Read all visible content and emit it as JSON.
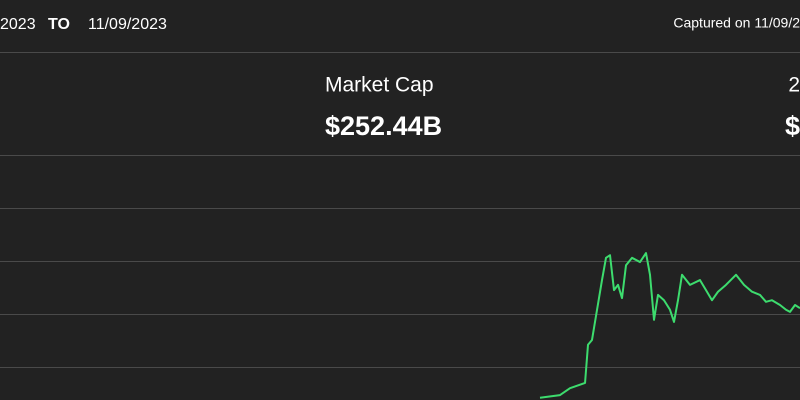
{
  "header": {
    "from_date": "2023",
    "to_label": "TO",
    "to_date": "11/09/2023",
    "captured": "Captured on 11/09/2"
  },
  "stats": [
    {
      "label": "Market Cap",
      "value": "$252.44B"
    },
    {
      "label": "2",
      "value": "$"
    }
  ],
  "chart_data": {
    "type": "line",
    "color": "#3ddc6e",
    "xlim": [
      0,
      100
    ],
    "ylim": [
      0,
      5
    ],
    "series": [
      {
        "x": [
          67.5,
          70,
          71.25,
          73.13,
          73.5,
          74,
          74.63,
          75.25,
          75.75,
          76.25,
          76.75,
          77.25,
          77.75,
          78.25,
          79,
          80,
          80.75,
          81.25,
          81.75,
          82.25,
          83,
          83.75,
          84.25,
          84.75,
          85.25,
          86.25,
          87.5,
          88.25,
          89,
          89.75,
          90.75,
          92,
          93,
          94,
          95,
          95.75,
          96.5,
          97.5,
          98.25,
          98.75,
          99.38,
          100
        ],
        "values": [
          0.42,
          0.47,
          0.6,
          0.7,
          1.42,
          1.51,
          2.08,
          2.64,
          3.06,
          3.11,
          2.45,
          2.55,
          2.3,
          2.92,
          3.06,
          2.98,
          3.15,
          2.74,
          1.89,
          2.36,
          2.26,
          2.08,
          1.85,
          2.26,
          2.74,
          2.55,
          2.64,
          2.45,
          2.26,
          2.42,
          2.55,
          2.74,
          2.55,
          2.42,
          2.36,
          2.23,
          2.26,
          2.17,
          2.08,
          2.04,
          2.17,
          2.11
        ]
      }
    ]
  }
}
